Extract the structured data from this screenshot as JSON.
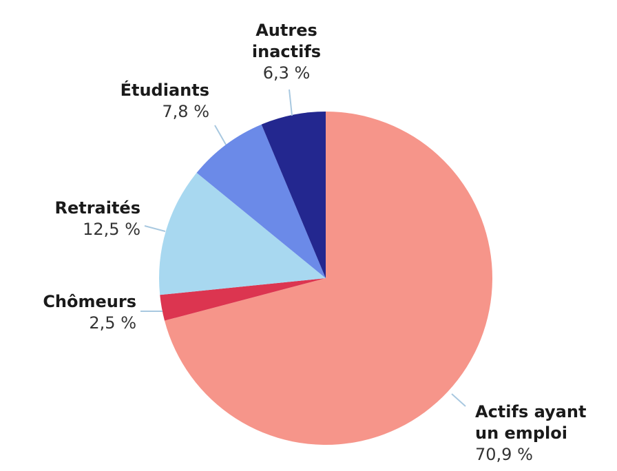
{
  "chart_data": {
    "type": "pie",
    "title": "",
    "start_angle_deg": 0,
    "direction": "clockwise",
    "slices": [
      {
        "label_lines": [
          "Actifs ayant",
          "un emploi"
        ],
        "value_text": "70,9 %",
        "value": 70.9,
        "color": "#f6958a"
      },
      {
        "label_lines": [
          "Chômeurs"
        ],
        "value_text": "2,5 %",
        "value": 2.5,
        "color": "#dc3550"
      },
      {
        "label_lines": [
          "Retraités"
        ],
        "value_text": "12,5 %",
        "value": 12.5,
        "color": "#a8d8f0"
      },
      {
        "label_lines": [
          "Étudiants"
        ],
        "value_text": "7,8 %",
        "value": 7.8,
        "color": "#6b8ae8"
      },
      {
        "label_lines": [
          "Autres",
          "inactifs"
        ],
        "value_text": "6,3 %",
        "value": 6.3,
        "color": "#23278f"
      }
    ]
  }
}
